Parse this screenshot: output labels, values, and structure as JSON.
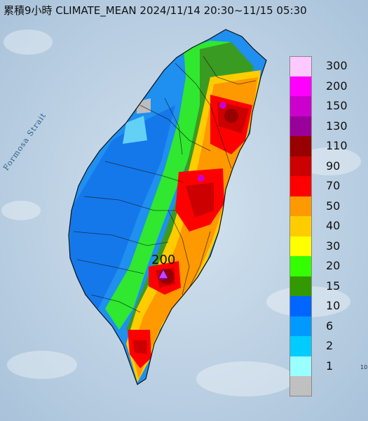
{
  "header": {
    "title": "累積9小時 CLIMATE_MEAN 2024/11/14 20:30~11/15 05:30"
  },
  "map": {
    "strait_label": "Formosa Strait",
    "peak_label": "200",
    "edge_label": "10"
  },
  "legend": {
    "items": [
      {
        "label": "300",
        "color": "#fdc9ff"
      },
      {
        "label": "200",
        "color": "#fe00fe"
      },
      {
        "label": "150",
        "color": "#cc00cc"
      },
      {
        "label": "130",
        "color": "#990099"
      },
      {
        "label": "110",
        "color": "#990000"
      },
      {
        "label": "90",
        "color": "#cc0000"
      },
      {
        "label": "70",
        "color": "#ff0000"
      },
      {
        "label": "50",
        "color": "#ff9900"
      },
      {
        "label": "40",
        "color": "#ffcc00"
      },
      {
        "label": "30",
        "color": "#ffff00"
      },
      {
        "label": "20",
        "color": "#33ff00"
      },
      {
        "label": "15",
        "color": "#339900"
      },
      {
        "label": "10",
        "color": "#0066ff"
      },
      {
        "label": "6",
        "color": "#0099ff"
      },
      {
        "label": "2",
        "color": "#00ccff"
      },
      {
        "label": "1",
        "color": "#99ffff"
      },
      {
        "label": "",
        "color": "#c0c0c0"
      }
    ]
  }
}
